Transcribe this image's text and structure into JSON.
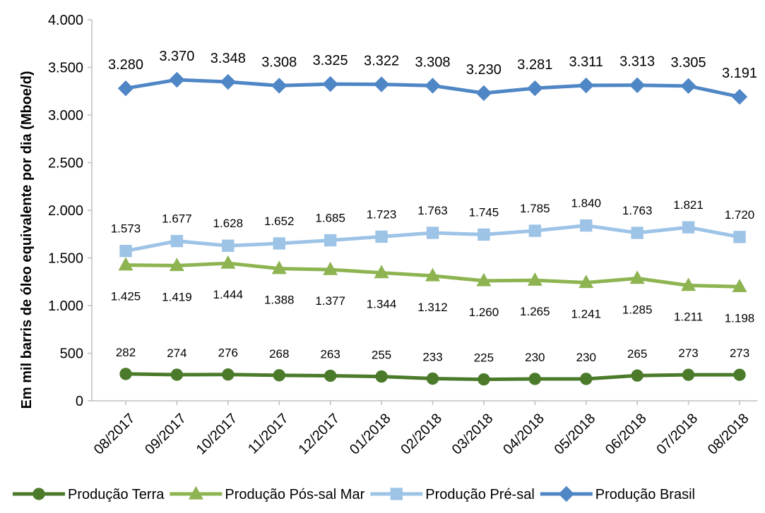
{
  "chart_data": {
    "type": "line",
    "categories": [
      "08/2017",
      "09/2017",
      "10/2017",
      "11/2017",
      "12/2017",
      "01/2018",
      "02/2018",
      "03/2018",
      "04/2018",
      "05/2018",
      "06/2018",
      "07/2018",
      "08/2018"
    ],
    "xlabel": "",
    "ylabel": "Em mil barris de óleo equivalente por dia (Mboe/d)",
    "ylim": [
      0,
      4000
    ],
    "yticks": [
      {
        "value": 0,
        "label": "0"
      },
      {
        "value": 500,
        "label": "500"
      },
      {
        "value": 1000,
        "label": "1.000"
      },
      {
        "value": 1500,
        "label": "1.500"
      },
      {
        "value": 2000,
        "label": "2.000"
      },
      {
        "value": 2500,
        "label": "2.500"
      },
      {
        "value": 3000,
        "label": "3.000"
      },
      {
        "value": 3500,
        "label": "3.500"
      },
      {
        "value": 4000,
        "label": "4.000"
      }
    ],
    "grid": false,
    "legend_position": "bottom",
    "series": [
      {
        "name": "Produção Terra",
        "color": "#4a7a2a",
        "marker": "circle",
        "values": [
          282,
          274,
          276,
          268,
          263,
          255,
          233,
          225,
          230,
          230,
          265,
          273,
          273
        ],
        "labels": [
          "282",
          "274",
          "276",
          "268",
          "263",
          "255",
          "233",
          "225",
          "230",
          "230",
          "265",
          "273",
          "273"
        ],
        "label_position": "above"
      },
      {
        "name": "Produção Pós-sal Mar",
        "color": "#8db451",
        "marker": "triangle",
        "values": [
          1425,
          1419,
          1444,
          1388,
          1377,
          1344,
          1312,
          1260,
          1265,
          1241,
          1285,
          1211,
          1198
        ],
        "labels": [
          "1.425",
          "1.419",
          "1.444",
          "1.388",
          "1.377",
          "1.344",
          "1.312",
          "1.260",
          "1.265",
          "1.241",
          "1.285",
          "1.211",
          "1.198"
        ],
        "label_position": "below"
      },
      {
        "name": "Produção Pré-sal",
        "color": "#9dc3e6",
        "marker": "square",
        "values": [
          1573,
          1677,
          1628,
          1652,
          1685,
          1723,
          1763,
          1745,
          1785,
          1840,
          1763,
          1821,
          1720
        ],
        "labels": [
          "1.573",
          "1.677",
          "1.628",
          "1.652",
          "1.685",
          "1.723",
          "1.763",
          "1.745",
          "1.785",
          "1.840",
          "1.763",
          "1.821",
          "1.720"
        ],
        "label_position": "above"
      },
      {
        "name": "Produção Brasil",
        "color": "#4f86c6",
        "marker": "diamond",
        "values": [
          3280,
          3370,
          3348,
          3308,
          3325,
          3322,
          3308,
          3230,
          3281,
          3311,
          3313,
          3305,
          3191
        ],
        "labels": [
          "3.280",
          "3.370",
          "3.348",
          "3.308",
          "3.325",
          "3.322",
          "3.308",
          "3.230",
          "3.281",
          "3.311",
          "3.313",
          "3.305",
          "3.191"
        ],
        "label_position": "above"
      }
    ]
  }
}
